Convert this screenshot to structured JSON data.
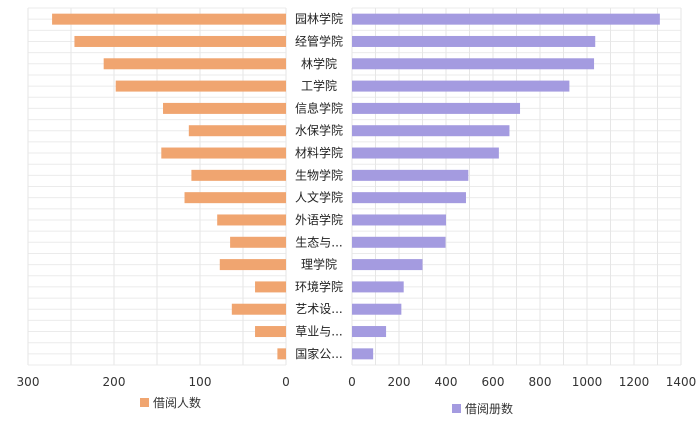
{
  "chart_data": {
    "type": "bar",
    "orientation": "horizontal-butterfly",
    "categories": [
      "园林学院",
      "经管学院",
      "林学院",
      "工学院",
      "信息学院",
      "水保学院",
      "材料学院",
      "生物学院",
      "人文学院",
      "外语学院",
      "生态与...",
      "理学院",
      "环境学院",
      "艺术设...",
      "草业与...",
      "国家公..."
    ],
    "series": [
      {
        "name": "借阅人数",
        "color": "#f0a570",
        "direction": "left",
        "xlim": [
          0,
          300
        ],
        "ticks": [
          0,
          100,
          200,
          300
        ],
        "values": [
          272,
          246,
          212,
          198,
          143,
          113,
          145,
          110,
          118,
          80,
          65,
          77,
          36,
          63,
          36,
          10
        ]
      },
      {
        "name": "借阅册数",
        "color": "#a49be0",
        "direction": "right",
        "xlim": [
          0,
          1400
        ],
        "ticks": [
          0,
          200,
          400,
          600,
          800,
          1000,
          1200,
          1400
        ],
        "values": [
          1310,
          1035,
          1030,
          925,
          715,
          670,
          625,
          495,
          485,
          400,
          398,
          300,
          220,
          210,
          145,
          90
        ]
      }
    ],
    "title": "",
    "xlabel": "",
    "ylabel": "",
    "grid": true,
    "legend_placement": "bottom"
  }
}
